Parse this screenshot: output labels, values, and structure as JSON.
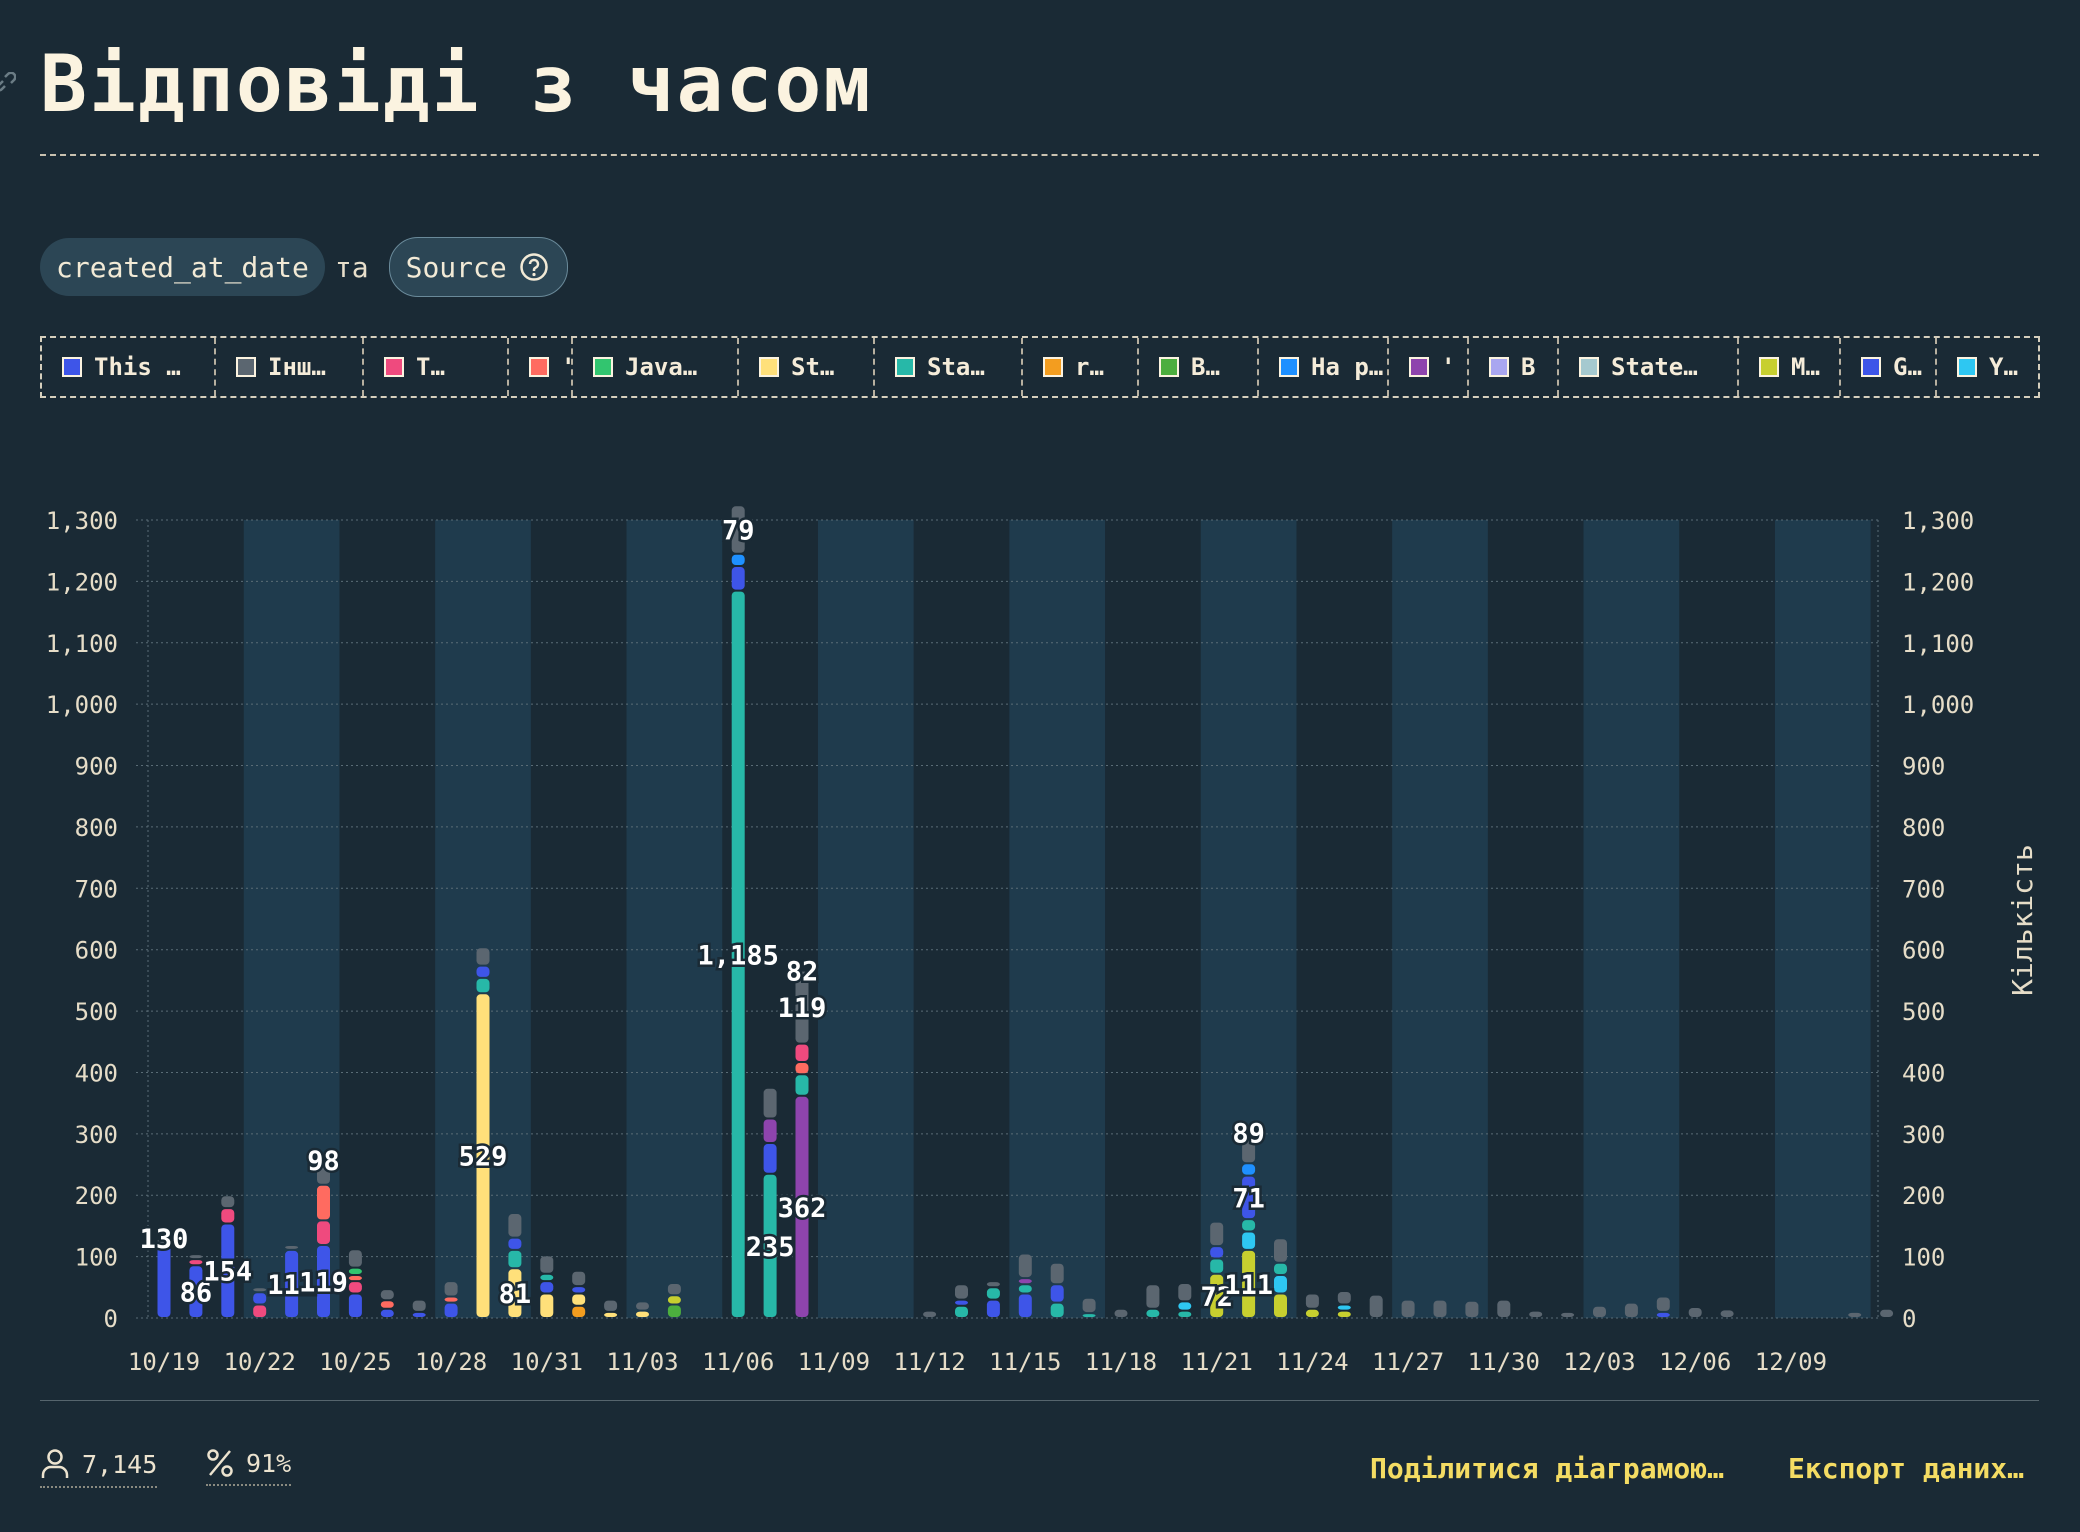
{
  "title": "Відповіді з часом",
  "chips": {
    "first": "created_at_date",
    "joiner": "та",
    "second": "Source"
  },
  "legend": [
    {
      "label": "This …",
      "color": "#3e55e8"
    },
    {
      "label": "Інш…",
      "color": "#5b6670"
    },
    {
      "label": "T…",
      "color": "#ef4a7e"
    },
    {
      "label": "'",
      "color": "#ff6b60"
    },
    {
      "label": "Java…",
      "color": "#32c56f"
    },
    {
      "label": "St…",
      "color": "#ffe07a"
    },
    {
      "label": "Sta…",
      "color": "#27b8a8"
    },
    {
      "label": "r…",
      "color": "#f39d1f"
    },
    {
      "label": "B…",
      "color": "#4cae3e"
    },
    {
      "label": "На р…",
      "color": "#1e90ff"
    },
    {
      "label": "'",
      "color": "#8e44ad"
    },
    {
      "label": "B",
      "color": "#a9a6f0"
    },
    {
      "label": "State…",
      "color": "#a5c9cf"
    },
    {
      "label": "M…",
      "color": "#c7cf2f"
    },
    {
      "label": "G…",
      "color": "#3e55e8"
    },
    {
      "label": "Y…",
      "color": "#2ec7f2"
    }
  ],
  "chart_data": {
    "type": "bar",
    "stacked": true,
    "ylabel": "Кількість",
    "ylim": [
      0,
      1300
    ],
    "yticks": [
      "0",
      "100",
      "200",
      "300",
      "400",
      "500",
      "600",
      "700",
      "800",
      "900",
      "1,000",
      "1,100",
      "1,200",
      "1,300"
    ],
    "x_tick_labels": [
      "10/19",
      "10/22",
      "10/25",
      "10/28",
      "10/31",
      "11/03",
      "11/06",
      "11/09",
      "11/12",
      "11/15",
      "11/18",
      "11/21",
      "11/24",
      "11/27",
      "11/30",
      "12/03",
      "12/06",
      "12/09"
    ],
    "x_start": "10/19",
    "series_colors": {
      "a": "#3e55e8",
      "b": "#5b6670",
      "c": "#ef4a7e",
      "d": "#ff6b60",
      "e": "#32c56f",
      "f": "#ffe07a",
      "g": "#27b8a8",
      "h": "#f39d1f",
      "i": "#4cae3e",
      "j": "#1e90ff",
      "k": "#8e44ad",
      "l": "#c7cf2f",
      "m": "#2ec7f2"
    },
    "bars": [
      {
        "x": "10/19",
        "segs": [
          [
            "a",
            120
          ],
          [
            "b",
            10
          ]
        ],
        "labels": [
          "130"
        ]
      },
      {
        "x": "10/20",
        "segs": [
          [
            "a",
            86
          ],
          [
            "c",
            10
          ],
          [
            "b",
            8
          ]
        ],
        "labels": [
          "86"
        ]
      },
      {
        "x": "10/21",
        "segs": [
          [
            "a",
            154
          ],
          [
            "c",
            25
          ],
          [
            "b",
            21
          ]
        ],
        "labels": [
          "154"
        ]
      },
      {
        "x": "10/22",
        "segs": [
          [
            "c",
            22
          ],
          [
            "a",
            20
          ],
          [
            "b",
            8
          ]
        ],
        "labels": []
      },
      {
        "x": "10/23",
        "segs": [
          [
            "a",
            111
          ],
          [
            "b",
            8
          ]
        ],
        "labels": [
          "111"
        ]
      },
      {
        "x": "10/24",
        "segs": [
          [
            "a",
            119
          ],
          [
            "c",
            40
          ],
          [
            "d",
            58
          ],
          [
            "b",
            40
          ]
        ],
        "labels": [
          "119",
          "98"
        ]
      },
      {
        "x": "10/25",
        "segs": [
          [
            "a",
            40
          ],
          [
            "c",
            20
          ],
          [
            "d",
            10
          ],
          [
            "e",
            12
          ],
          [
            "b",
            30
          ]
        ],
        "labels": []
      },
      {
        "x": "10/26",
        "segs": [
          [
            "a",
            15
          ],
          [
            "d",
            14
          ],
          [
            "b",
            18
          ]
        ],
        "labels": []
      },
      {
        "x": "10/27",
        "segs": [
          [
            "a",
            10
          ],
          [
            "b",
            20
          ]
        ],
        "labels": []
      },
      {
        "x": "10/28",
        "segs": [
          [
            "a",
            25
          ],
          [
            "d",
            10
          ],
          [
            "b",
            25
          ]
        ],
        "labels": []
      },
      {
        "x": "10/29",
        "segs": [
          [
            "f",
            529
          ],
          [
            "g",
            25
          ],
          [
            "a",
            20
          ],
          [
            "b",
            30
          ]
        ],
        "labels": [
          "529"
        ]
      },
      {
        "x": "10/30",
        "segs": [
          [
            "f",
            81
          ],
          [
            "g",
            30
          ],
          [
            "a",
            20
          ],
          [
            "b",
            40
          ]
        ],
        "labels": [
          "81"
        ]
      },
      {
        "x": "10/31",
        "segs": [
          [
            "f",
            40
          ],
          [
            "a",
            20
          ],
          [
            "g",
            12
          ],
          [
            "b",
            30
          ]
        ],
        "labels": []
      },
      {
        "x": "11/01",
        "segs": [
          [
            "h",
            20
          ],
          [
            "f",
            20
          ],
          [
            "a",
            12
          ],
          [
            "b",
            25
          ]
        ],
        "labels": []
      },
      {
        "x": "11/02",
        "segs": [
          [
            "f",
            10
          ],
          [
            "b",
            20
          ]
        ],
        "labels": []
      },
      {
        "x": "11/03",
        "segs": [
          [
            "f",
            12
          ],
          [
            "b",
            15
          ]
        ],
        "labels": []
      },
      {
        "x": "11/04",
        "segs": [
          [
            "i",
            22
          ],
          [
            "l",
            15
          ],
          [
            "b",
            20
          ]
        ],
        "labels": []
      },
      {
        "x": "11/05",
        "segs": [],
        "labels": []
      },
      {
        "x": "11/06",
        "segs": [
          [
            "g",
            1185
          ],
          [
            "a",
            40
          ],
          [
            "j",
            20
          ],
          [
            "b",
            79
          ]
        ],
        "labels": [
          "1,185",
          "79"
        ]
      },
      {
        "x": "11/07",
        "segs": [
          [
            "g",
            235
          ],
          [
            "a",
            50
          ],
          [
            "k",
            40
          ],
          [
            "b",
            50
          ]
        ],
        "labels": [
          "235"
        ]
      },
      {
        "x": "11/08",
        "segs": [
          [
            "k",
            362
          ],
          [
            "g",
            35
          ],
          [
            "d",
            20
          ],
          [
            "c",
            30
          ],
          [
            "b",
            119
          ]
        ],
        "labels": [
          "362",
          "82",
          "119"
        ]
      },
      {
        "x": "11/09",
        "segs": [],
        "labels": []
      },
      {
        "x": "11/10",
        "segs": [],
        "labels": []
      },
      {
        "x": "11/11",
        "segs": [],
        "labels": []
      },
      {
        "x": "11/12",
        "segs": [
          [
            "b",
            12
          ]
        ],
        "labels": []
      },
      {
        "x": "11/13",
        "segs": [
          [
            "g",
            20
          ],
          [
            "a",
            10
          ],
          [
            "b",
            25
          ]
        ],
        "labels": []
      },
      {
        "x": "11/14",
        "segs": [
          [
            "a",
            30
          ],
          [
            "g",
            20
          ],
          [
            "b",
            10
          ]
        ],
        "labels": []
      },
      {
        "x": "11/15",
        "segs": [
          [
            "a",
            40
          ],
          [
            "g",
            15
          ],
          [
            "k",
            10
          ],
          [
            "b",
            40
          ]
        ],
        "labels": []
      },
      {
        "x": "11/16",
        "segs": [
          [
            "g",
            25
          ],
          [
            "a",
            30
          ],
          [
            "b",
            35
          ]
        ],
        "labels": []
      },
      {
        "x": "11/17",
        "segs": [
          [
            "g",
            8
          ],
          [
            "b",
            25
          ]
        ],
        "labels": []
      },
      {
        "x": "11/18",
        "segs": [
          [
            "b",
            15
          ]
        ],
        "labels": []
      },
      {
        "x": "11/19",
        "segs": [
          [
            "g",
            15
          ],
          [
            "b",
            40
          ]
        ],
        "labels": []
      },
      {
        "x": "11/20",
        "segs": [
          [
            "g",
            12
          ],
          [
            "m",
            15
          ],
          [
            "b",
            30
          ]
        ],
        "labels": []
      },
      {
        "x": "11/21",
        "segs": [
          [
            "l",
            72
          ],
          [
            "g",
            25
          ],
          [
            "a",
            20
          ],
          [
            "b",
            40
          ]
        ],
        "labels": [
          "72"
        ]
      },
      {
        "x": "11/22",
        "segs": [
          [
            "l",
            111
          ],
          [
            "m",
            30
          ],
          [
            "g",
            20
          ],
          [
            "a",
            71
          ],
          [
            "j",
            20
          ],
          [
            "b",
            50
          ]
        ],
        "labels": [
          "111",
          "89",
          "71"
        ]
      },
      {
        "x": "11/23",
        "segs": [
          [
            "l",
            40
          ],
          [
            "m",
            30
          ],
          [
            "g",
            20
          ],
          [
            "b",
            40
          ]
        ],
        "labels": []
      },
      {
        "x": "11/24",
        "segs": [
          [
            "l",
            15
          ],
          [
            "b",
            25
          ]
        ],
        "labels": []
      },
      {
        "x": "11/25",
        "segs": [
          [
            "l",
            12
          ],
          [
            "m",
            10
          ],
          [
            "b",
            22
          ]
        ],
        "labels": []
      },
      {
        "x": "11/26",
        "segs": [
          [
            "b",
            38
          ]
        ],
        "labels": []
      },
      {
        "x": "11/27",
        "segs": [
          [
            "b",
            30
          ]
        ],
        "labels": []
      },
      {
        "x": "11/28",
        "segs": [
          [
            "b",
            30
          ]
        ],
        "labels": []
      },
      {
        "x": "11/29",
        "segs": [
          [
            "b",
            28
          ]
        ],
        "labels": []
      },
      {
        "x": "11/30",
        "segs": [
          [
            "b",
            30
          ]
        ],
        "labels": []
      },
      {
        "x": "12/01",
        "segs": [
          [
            "b",
            12
          ]
        ],
        "labels": []
      },
      {
        "x": "12/02",
        "segs": [
          [
            "b",
            10
          ]
        ],
        "labels": []
      },
      {
        "x": "12/03",
        "segs": [
          [
            "b",
            20
          ]
        ],
        "labels": []
      },
      {
        "x": "12/04",
        "segs": [
          [
            "b",
            25
          ]
        ],
        "labels": []
      },
      {
        "x": "12/05",
        "segs": [
          [
            "a",
            10
          ],
          [
            "b",
            25
          ]
        ],
        "labels": []
      },
      {
        "x": "12/06",
        "segs": [
          [
            "b",
            18
          ]
        ],
        "labels": []
      },
      {
        "x": "12/07",
        "segs": [
          [
            "b",
            14
          ]
        ],
        "labels": []
      },
      {
        "x": "12/08",
        "segs": [],
        "labels": []
      },
      {
        "x": "12/09",
        "segs": [],
        "labels": []
      },
      {
        "x": "12/10",
        "segs": [],
        "labels": []
      },
      {
        "x": "12/11",
        "segs": [
          [
            "b",
            10
          ]
        ],
        "labels": []
      },
      {
        "x": "12/12",
        "segs": [
          [
            "b",
            15
          ]
        ],
        "labels": []
      }
    ]
  },
  "footer": {
    "respondents": "7,145",
    "percent": "91%",
    "share_label": "Поділитися діаграмою…",
    "export_label": "Експорт даних…"
  }
}
